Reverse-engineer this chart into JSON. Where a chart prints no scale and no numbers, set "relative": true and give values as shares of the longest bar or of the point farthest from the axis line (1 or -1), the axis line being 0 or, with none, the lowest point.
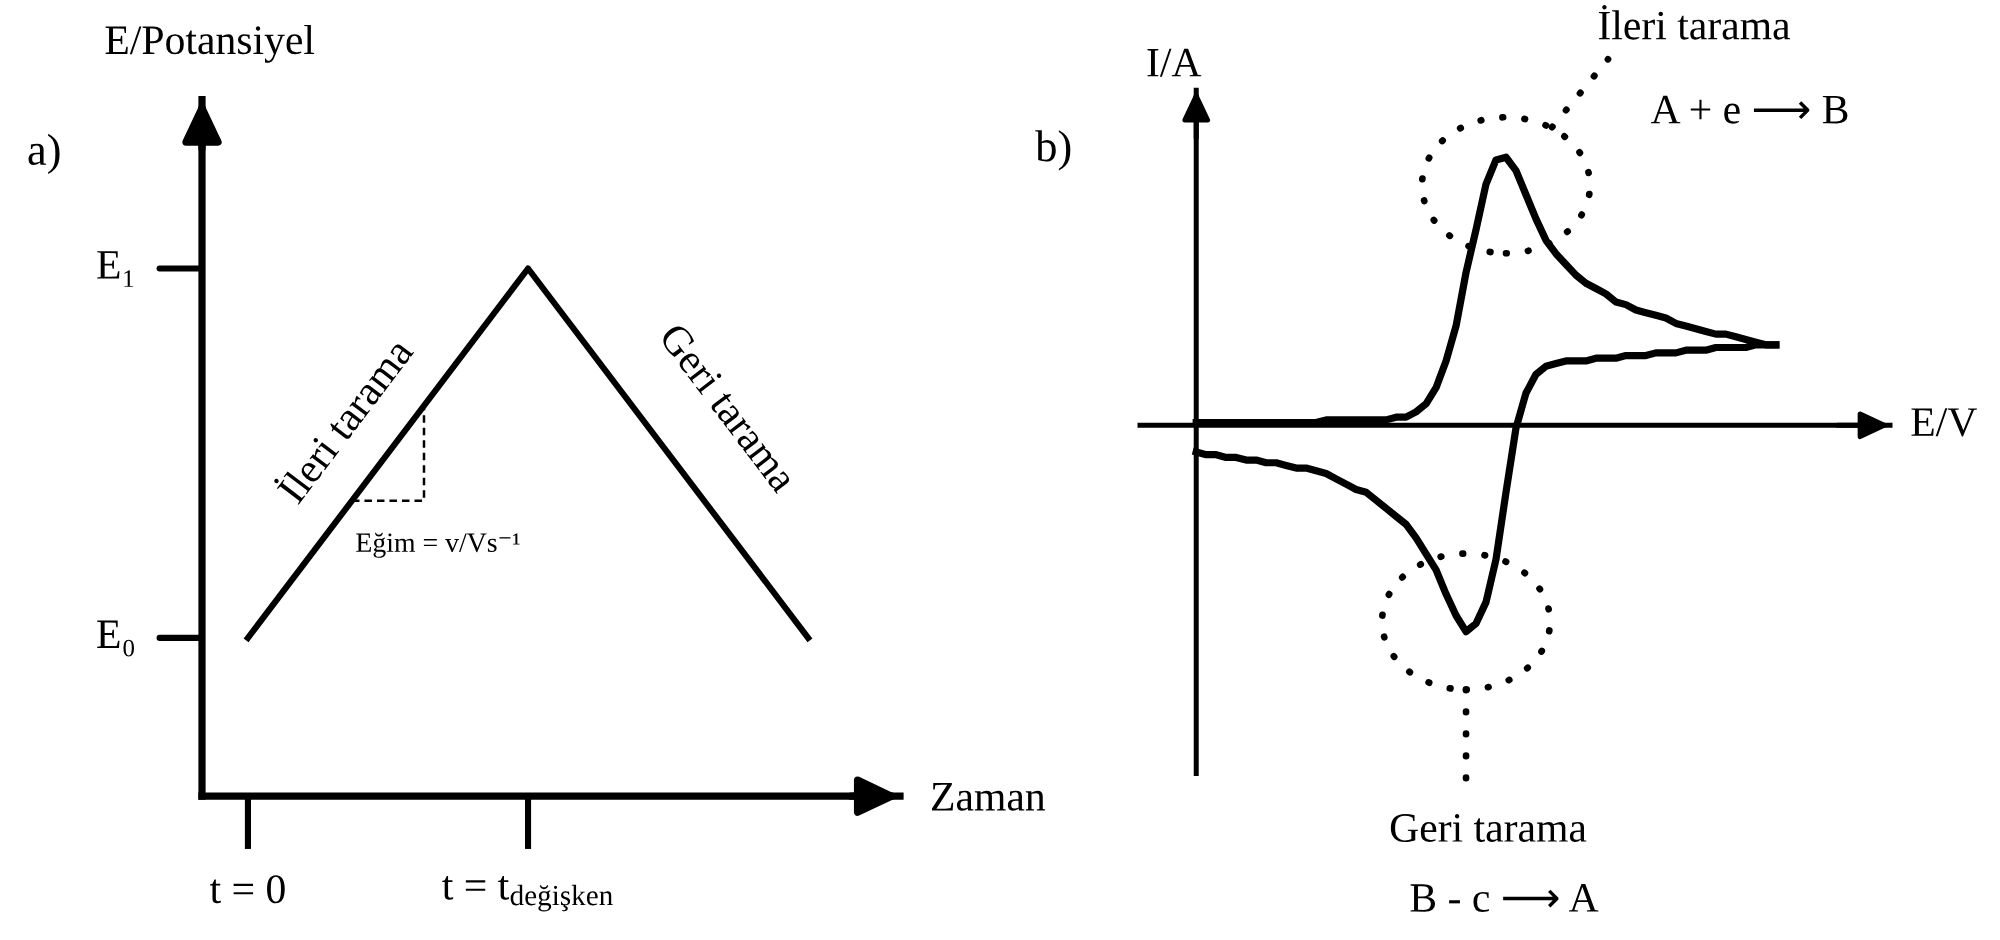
{
  "chart_data": [
    {
      "type": "line",
      "title": "a)",
      "xlabel": "Zaman",
      "ylabel": "E/Potansiyel",
      "relative": true,
      "categories": [
        "t = 0",
        "t = t$_{değişken}$",
        null
      ],
      "values": [
        0.3,
        1,
        0.3
      ],
      "color": "#000000",
      "annotations": [
        "İleri tarama",
        "Geri tarama",
        "E₀",
        "E₁",
        "Eğim = v/Vs⁻¹"
      ]
    },
    {
      "type": "line",
      "title": "b)",
      "xlabel": "E/V",
      "ylabel": "I/A",
      "relative": true,
      "categories": [
        null,
        null,
        null,
        null,
        null,
        null,
        null,
        null,
        null,
        null,
        null,
        null,
        null,
        null,
        null,
        null,
        null,
        null,
        null,
        null,
        null,
        null,
        null,
        null,
        null,
        null,
        null,
        null,
        null,
        null,
        null,
        null,
        null,
        null,
        null,
        null,
        null,
        null,
        null,
        null,
        null,
        null,
        null,
        null,
        null,
        null,
        null,
        null,
        null,
        null,
        null,
        null,
        null,
        null,
        null,
        null,
        null,
        null,
        null
      ],
      "series": [
        {
          "color": "#000000",
          "values": [
            0.01,
            0.01,
            0.01,
            0.01,
            0.01,
            0.01,
            0.01,
            0.01,
            0.01,
            0.01,
            0.01,
            0.01,
            0.01,
            0.02,
            0.02,
            0.02,
            0.02,
            0.02,
            0.02,
            0.02,
            0.03,
            0.03,
            0.05,
            0.08,
            0.14,
            0.24,
            0.37,
            0.57,
            0.73,
            0.9,
            0.99,
            1,
            0.95,
            0.86,
            0.77,
            0.69,
            0.64,
            0.6,
            0.56,
            0.53,
            0.51,
            0.49,
            0.46,
            0.45,
            0.43,
            0.42,
            0.41,
            0.4,
            0.38,
            0.37,
            0.36,
            0.35,
            0.34,
            0.34,
            0.33,
            0.32,
            0.31,
            0.3,
            0.3
          ]
        },
        {
          "color": "#000000",
          "values": [
            -0.1,
            -0.11,
            -0.11,
            -0.12,
            -0.12,
            -0.13,
            -0.13,
            -0.14,
            -0.14,
            -0.15,
            -0.16,
            -0.16,
            -0.17,
            -0.18,
            -0.2,
            -0.22,
            -0.24,
            -0.25,
            -0.28,
            -0.31,
            -0.34,
            -0.37,
            -0.42,
            -0.48,
            -0.54,
            -0.63,
            -0.71,
            -0.77,
            -0.74,
            -0.66,
            -0.5,
            -0.25,
            -0.01,
            0.12,
            0.19,
            0.22,
            0.23,
            0.24,
            0.24,
            0.24,
            0.25,
            0.25,
            0.25,
            0.26,
            0.26,
            0.26,
            0.27,
            0.27,
            0.27,
            0.28,
            0.28,
            0.28,
            0.29,
            0.29,
            0.29,
            0.29,
            0.3,
            0.3,
            0.3
          ]
        }
      ],
      "annotations": [
        "İleri tarama",
        "A + e ⟶ B",
        "Geri tarama",
        "B - c ⟶ A"
      ]
    }
  ]
}
